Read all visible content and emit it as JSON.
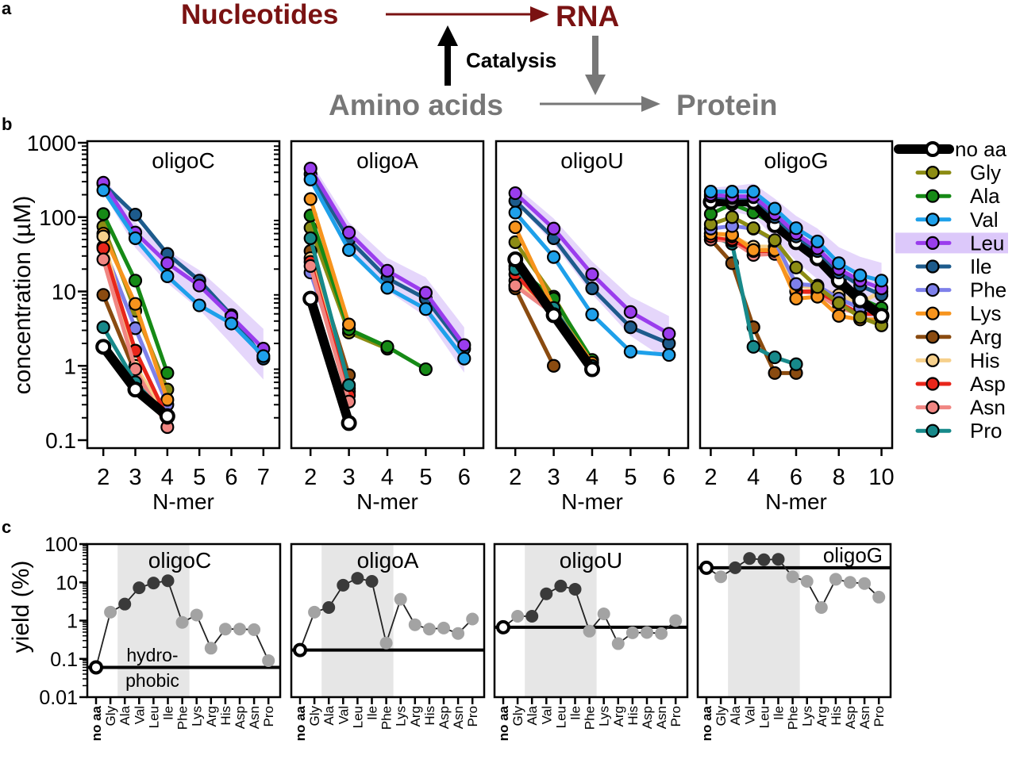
{
  "panel_a": {
    "label": "a",
    "nucleotides": "Nucleotides",
    "rna": "RNA",
    "catalysis": "Catalysis",
    "amino_acids": "Amino acids",
    "protein": "Protein",
    "colors": {
      "nucleotides": "#7a1212",
      "amino_acids": "#777777",
      "catalysis": "#000000"
    }
  },
  "panel_labels": {
    "b": "b",
    "c": "c"
  },
  "legend": [
    {
      "name": "no aa",
      "color": "#000000"
    },
    {
      "name": "Gly",
      "color": "#8c8c14"
    },
    {
      "name": "Ala",
      "color": "#168a16"
    },
    {
      "name": "Val",
      "color": "#1ea0ea"
    },
    {
      "name": "Leu",
      "color": "#9a3ded"
    },
    {
      "name": "Ile",
      "color": "#1d5b8c"
    },
    {
      "name": "Phe",
      "color": "#7e80ea"
    },
    {
      "name": "Lys",
      "color": "#f7941d"
    },
    {
      "name": "Arg",
      "color": "#8a4b10"
    },
    {
      "name": "His",
      "color": "#f6d08c"
    },
    {
      "name": "Asp",
      "color": "#e8261b"
    },
    {
      "name": "Asn",
      "color": "#f08682"
    },
    {
      "name": "Pro",
      "color": "#17898a"
    }
  ],
  "chart_data": [
    {
      "panel": "b",
      "type": "line",
      "title": "oligoC",
      "xlabel": "N-mer",
      "ylabel": "concentration (µM)",
      "yscale": "log",
      "ylim": [
        0.08,
        1000
      ],
      "xlim": [
        1.5,
        7.5
      ],
      "xticks": [
        "2",
        "3",
        "4",
        "5",
        "6",
        "7"
      ],
      "yticks": [
        "0.1",
        "1",
        "10",
        "100",
        "1000"
      ],
      "series": [
        {
          "name": "Gly",
          "x": [
            2,
            3,
            4
          ],
          "values": [
            75,
            5.5,
            0.48
          ]
        },
        {
          "name": "Ala",
          "x": [
            2,
            3,
            4
          ],
          "values": [
            110,
            14,
            0.8
          ]
        },
        {
          "name": "Phe",
          "x": [
            2,
            3,
            4
          ],
          "values": [
            40,
            3.2,
            0.3
          ]
        },
        {
          "name": "Lys",
          "x": [
            2,
            3,
            4
          ],
          "values": [
            60,
            6.8,
            0.35
          ]
        },
        {
          "name": "Arg",
          "x": [
            2,
            3,
            4
          ],
          "values": [
            9,
            0.8,
            0.2
          ]
        },
        {
          "name": "His",
          "x": [
            2,
            3,
            4
          ],
          "values": [
            55,
            1.0,
            0.2
          ]
        },
        {
          "name": "Asp",
          "x": [
            2,
            3,
            4
          ],
          "values": [
            38,
            1.6,
            0.2
          ]
        },
        {
          "name": "Asn",
          "x": [
            2,
            3,
            4
          ],
          "values": [
            27,
            0.9,
            0.15
          ]
        },
        {
          "name": "Pro",
          "x": [
            2,
            3,
            4
          ],
          "values": [
            3.3,
            0.6,
            0.2
          ]
        },
        {
          "name": "Ile",
          "x": [
            2,
            3,
            4,
            5,
            6,
            7
          ],
          "values": [
            280,
            108,
            32,
            14,
            4.8,
            1.25
          ]
        },
        {
          "name": "Leu",
          "x": [
            2,
            3,
            4,
            5,
            6,
            7
          ],
          "values": [
            290,
            62,
            24,
            12,
            4.6,
            1.7
          ]
        },
        {
          "name": "Val",
          "x": [
            2,
            3,
            4,
            5,
            6,
            7
          ],
          "values": [
            230,
            52,
            16,
            6.5,
            3.7,
            1.35
          ]
        },
        {
          "name": "no aa",
          "x": [
            2,
            3,
            4
          ],
          "values": [
            1.8,
            0.48,
            0.21
          ]
        }
      ]
    },
    {
      "panel": "b",
      "type": "line",
      "title": "oligoA",
      "xlabel": "N-mer",
      "yscale": "log",
      "ylim": [
        0.08,
        1000
      ],
      "xlim": [
        1.5,
        6.5
      ],
      "xticks": [
        "2",
        "3",
        "4",
        "5",
        "6"
      ],
      "series": [
        {
          "name": "Gly",
          "x": [
            2,
            3,
            4
          ],
          "values": [
            72,
            2.8,
            1.7
          ]
        },
        {
          "name": "Ala",
          "x": [
            2,
            3,
            4,
            5
          ],
          "values": [
            105,
            3.1,
            1.8,
            0.9
          ]
        },
        {
          "name": "Phe",
          "x": [
            2,
            3
          ],
          "values": [
            18,
            0.5
          ]
        },
        {
          "name": "Lys",
          "x": [
            2,
            3
          ],
          "values": [
            175,
            3.6
          ]
        },
        {
          "name": "Arg",
          "x": [
            2,
            3
          ],
          "values": [
            35,
            0.75
          ]
        },
        {
          "name": "His",
          "x": [
            2,
            3
          ],
          "values": [
            28,
            0.45
          ]
        },
        {
          "name": "Asp",
          "x": [
            2,
            3
          ],
          "values": [
            25,
            0.4
          ]
        },
        {
          "name": "Asn",
          "x": [
            2,
            3
          ],
          "values": [
            22,
            0.33
          ]
        },
        {
          "name": "Pro",
          "x": [
            2,
            3
          ],
          "values": [
            52,
            0.55
          ]
        },
        {
          "name": "Ile",
          "x": [
            2,
            3,
            4,
            5,
            6
          ],
          "values": [
            380,
            50,
            15,
            8,
            1.7
          ]
        },
        {
          "name": "Leu",
          "x": [
            2,
            3,
            4,
            5,
            6
          ],
          "values": [
            450,
            62,
            19,
            9.6,
            1.9
          ]
        },
        {
          "name": "Val",
          "x": [
            2,
            3,
            4,
            5,
            6
          ],
          "values": [
            320,
            36,
            11.2,
            5.8,
            1.25
          ]
        },
        {
          "name": "no aa",
          "x": [
            2,
            3
          ],
          "values": [
            8,
            0.17
          ]
        }
      ]
    },
    {
      "panel": "b",
      "type": "line",
      "title": "oligoU",
      "xlabel": "N-mer",
      "yscale": "log",
      "ylim": [
        0.08,
        1000
      ],
      "xlim": [
        1.5,
        6.5
      ],
      "xticks": [
        "2",
        "3",
        "4",
        "5",
        "6"
      ],
      "series": [
        {
          "name": "Gly",
          "x": [
            2,
            3,
            4
          ],
          "values": [
            46,
            8.5,
            1.1
          ]
        },
        {
          "name": "Ala",
          "x": [
            2,
            3,
            4
          ],
          "values": [
            22,
            8,
            1.2
          ]
        },
        {
          "name": "Phe",
          "x": [
            2,
            3
          ],
          "values": [
            12,
            5
          ]
        },
        {
          "name": "Lys",
          "x": [
            2,
            3,
            4
          ],
          "values": [
            73,
            6,
            1.1
          ]
        },
        {
          "name": "Arg",
          "x": [
            2,
            3
          ],
          "values": [
            11,
            1.0
          ]
        },
        {
          "name": "His",
          "x": [
            2,
            3
          ],
          "values": [
            14,
            5
          ]
        },
        {
          "name": "Asp",
          "x": [
            2,
            3
          ],
          "values": [
            17,
            5
          ]
        },
        {
          "name": "Asn",
          "x": [
            2,
            3
          ],
          "values": [
            12,
            5
          ]
        },
        {
          "name": "Pro",
          "x": [
            2,
            3,
            4
          ],
          "values": [
            20,
            6,
            1.0
          ]
        },
        {
          "name": "Ile",
          "x": [
            2,
            3,
            4,
            5,
            6
          ],
          "values": [
            165,
            52,
            11,
            3.3,
            2.0
          ]
        },
        {
          "name": "Leu",
          "x": [
            2,
            3,
            4,
            5,
            6
          ],
          "values": [
            210,
            70,
            17,
            5.3,
            2.7
          ]
        },
        {
          "name": "Val",
          "x": [
            2,
            3,
            4,
            5,
            6
          ],
          "values": [
            115,
            29,
            4.9,
            1.55,
            1.4
          ]
        },
        {
          "name": "no aa",
          "x": [
            2,
            3,
            4
          ],
          "values": [
            27,
            4.8,
            0.9
          ]
        }
      ]
    },
    {
      "panel": "b",
      "type": "line",
      "title": "oligoG",
      "xlabel": "N-mer",
      "yscale": "log",
      "ylim": [
        0.08,
        1000
      ],
      "xlim": [
        1.5,
        10.5
      ],
      "xticks": [
        "2",
        "4",
        "6",
        "8",
        "10"
      ],
      "series": [
        {
          "name": "Arg",
          "x": [
            2,
            3,
            4,
            5,
            6
          ],
          "values": [
            50,
            24,
            3.3,
            0.8,
            0.8
          ]
        },
        {
          "name": "Pro",
          "x": [
            2,
            3,
            4,
            5,
            6
          ],
          "values": [
            55,
            44,
            1.8,
            1.3,
            1.05
          ]
        },
        {
          "name": "Asn",
          "x": [
            2,
            3,
            4,
            5,
            6,
            7,
            8,
            9,
            10
          ],
          "values": [
            50,
            48,
            31,
            32,
            10,
            9.5,
            6,
            5,
            5
          ]
        },
        {
          "name": "Asp",
          "x": [
            2,
            3,
            4,
            5,
            6,
            7,
            8,
            9,
            10
          ],
          "values": [
            55,
            50,
            35,
            35,
            10,
            10,
            7,
            5,
            5
          ]
        },
        {
          "name": "His",
          "x": [
            2,
            3,
            4,
            5,
            6,
            7,
            8,
            9,
            10
          ],
          "values": [
            60,
            55,
            40,
            40,
            12,
            11,
            9,
            7,
            10
          ]
        },
        {
          "name": "Lys",
          "x": [
            2,
            3,
            4,
            5,
            6,
            7,
            8,
            9,
            10
          ],
          "values": [
            60,
            58,
            36,
            36,
            8,
            8.5,
            4.7,
            4.2,
            4.2
          ]
        },
        {
          "name": "Phe",
          "x": [
            2,
            3,
            4,
            5,
            6,
            7,
            8,
            9,
            10
          ],
          "values": [
            70,
            76,
            70,
            48,
            12.6,
            12,
            8,
            6,
            5
          ]
        },
        {
          "name": "Gly",
          "x": [
            2,
            3,
            4,
            5,
            6,
            7,
            8,
            9,
            10
          ],
          "values": [
            80,
            100,
            71,
            49,
            21,
            11.5,
            7,
            4.5,
            3.5
          ]
        },
        {
          "name": "Ala",
          "x": [
            2,
            3,
            4,
            5,
            6,
            7,
            8,
            9,
            10
          ],
          "values": [
            110,
            150,
            115,
            80,
            45,
            27,
            14,
            8,
            6
          ]
        },
        {
          "name": "no aa",
          "x": [
            2,
            3,
            4,
            5,
            6,
            7,
            8,
            9,
            10
          ],
          "values": [
            160,
            165,
            160,
            78,
            46,
            28,
            14,
            7.6,
            4.7
          ]
        },
        {
          "name": "Ile",
          "x": [
            2,
            3,
            4,
            5,
            6,
            7,
            8,
            9,
            10
          ],
          "values": [
            190,
            180,
            185,
            100,
            55,
            35,
            18,
            12,
            9
          ]
        },
        {
          "name": "Leu",
          "x": [
            2,
            3,
            4,
            5,
            6,
            7,
            8,
            9,
            10
          ],
          "values": [
            200,
            190,
            190,
            110,
            60,
            38,
            20,
            14,
            11
          ]
        },
        {
          "name": "Val",
          "x": [
            2,
            3,
            4,
            5,
            6,
            7,
            8,
            9,
            10
          ],
          "values": [
            220,
            220,
            220,
            130,
            71,
            47,
            24,
            16.5,
            14
          ]
        }
      ]
    },
    {
      "panel": "c",
      "type": "line",
      "title": "oligoC",
      "ylabel": "yield (%)",
      "yscale": "log",
      "ylim": [
        0.01,
        100
      ],
      "yticks": [
        "0.01",
        "0.1",
        "1",
        "10",
        "100"
      ],
      "categories": [
        "no aa",
        "Gly",
        "Ala",
        "Val",
        "Leu",
        "Ile",
        "Phe",
        "Lys",
        "Arg",
        "His",
        "Asp",
        "Asn",
        "Pro"
      ],
      "values": [
        0.06,
        1.66,
        2.7,
        7.2,
        9.6,
        11,
        0.9,
        1.4,
        0.19,
        0.6,
        0.6,
        0.58,
        0.09
      ],
      "baseline": 0.06,
      "shaded_region": [
        "Ala",
        "Phe"
      ],
      "annotation": [
        "hydro-",
        "phobic"
      ]
    },
    {
      "panel": "c",
      "type": "line",
      "title": "oligoA",
      "yscale": "log",
      "ylim": [
        0.01,
        100
      ],
      "categories": [
        "no aa",
        "Gly",
        "Ala",
        "Val",
        "Leu",
        "Ile",
        "Phe",
        "Lys",
        "Arg",
        "His",
        "Asp",
        "Asn",
        "Pro"
      ],
      "values": [
        0.17,
        1.66,
        2.2,
        8.4,
        12.8,
        10.6,
        0.26,
        3.6,
        0.78,
        0.6,
        0.64,
        0.46,
        1.1
      ],
      "baseline": 0.17,
      "shaded_region": [
        "Ala",
        "Phe"
      ]
    },
    {
      "panel": "c",
      "type": "line",
      "title": "oligoU",
      "yscale": "log",
      "ylim": [
        0.01,
        100
      ],
      "categories": [
        "no aa",
        "Gly",
        "Ala",
        "Val",
        "Leu",
        "Ile",
        "Phe",
        "Lys",
        "Arg",
        "His",
        "Asp",
        "Asn",
        "Pro"
      ],
      "values": [
        0.67,
        1.3,
        1.3,
        5,
        8,
        6.6,
        0.53,
        1.5,
        0.25,
        0.48,
        0.49,
        0.46,
        1.0
      ],
      "baseline": 0.67,
      "shaded_region": [
        "Ala",
        "Phe"
      ]
    },
    {
      "panel": "c",
      "type": "line",
      "title": "oligoG",
      "yscale": "log",
      "ylim": [
        0.01,
        100
      ],
      "categories": [
        "no aa",
        "Gly",
        "Ala",
        "Val",
        "Leu",
        "Ile",
        "Phe",
        "Lys",
        "Arg",
        "His",
        "Asp",
        "Asn",
        "Pro"
      ],
      "values": [
        24,
        14,
        24,
        42,
        39,
        40,
        14,
        10.6,
        2.2,
        12,
        10,
        9.3,
        4.1
      ],
      "baseline": 24,
      "shaded_region": [
        "Ala",
        "Phe"
      ]
    }
  ],
  "marker_colors": {
    "hydrophobic": "#3a3a3a",
    "other": "#a3a3a3",
    "shade": "#e6e6e6",
    "leu_band": "#dcc8fa"
  }
}
